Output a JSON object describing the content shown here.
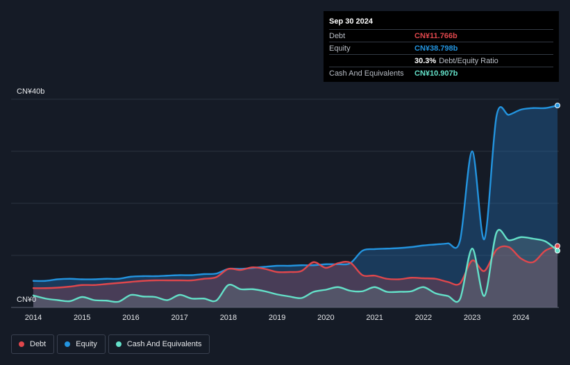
{
  "tooltip": {
    "date": "Sep 30 2024",
    "rows": [
      {
        "label": "Debt",
        "value": "CN¥11.766b",
        "color": "#e0474c"
      },
      {
        "label": "Equity",
        "value": "CN¥38.798b",
        "color": "#2394df"
      },
      {
        "label": "",
        "value": "30.3%",
        "sub": "Debt/Equity Ratio",
        "color": "#ffffff"
      },
      {
        "label": "Cash And Equivalents",
        "value": "CN¥10.907b",
        "color": "#64e1c9"
      }
    ]
  },
  "legend": [
    {
      "label": "Debt",
      "color": "#e0474c"
    },
    {
      "label": "Equity",
      "color": "#2394df"
    },
    {
      "label": "Cash And Equivalents",
      "color": "#64e1c9"
    }
  ],
  "chart_data": {
    "type": "area",
    "title": "",
    "xlabel": "",
    "ylabel": "",
    "ylim": [
      0,
      40
    ],
    "xlim": [
      2014.0,
      2024.75
    ],
    "y_tick_labels": [
      "CN¥0",
      "CN¥40b"
    ],
    "x_ticks": [
      2014,
      2015,
      2016,
      2017,
      2018,
      2019,
      2020,
      2021,
      2022,
      2023,
      2024
    ],
    "grid": true,
    "series": [
      {
        "name": "Equity",
        "color": "#2394df",
        "points": [
          [
            2014.0,
            5.1
          ],
          [
            2014.25,
            5.1
          ],
          [
            2014.5,
            5.4
          ],
          [
            2014.75,
            5.5
          ],
          [
            2015.0,
            5.4
          ],
          [
            2015.25,
            5.4
          ],
          [
            2015.5,
            5.5
          ],
          [
            2015.75,
            5.5
          ],
          [
            2016.0,
            5.9
          ],
          [
            2016.25,
            6.0
          ],
          [
            2016.5,
            6.0
          ],
          [
            2016.75,
            6.1
          ],
          [
            2017.0,
            6.2
          ],
          [
            2017.25,
            6.2
          ],
          [
            2017.5,
            6.4
          ],
          [
            2017.75,
            6.5
          ],
          [
            2018.0,
            7.4
          ],
          [
            2018.25,
            7.4
          ],
          [
            2018.5,
            7.6
          ],
          [
            2018.75,
            7.8
          ],
          [
            2019.0,
            8.0
          ],
          [
            2019.25,
            8.0
          ],
          [
            2019.5,
            8.1
          ],
          [
            2019.75,
            8.1
          ],
          [
            2020.0,
            8.3
          ],
          [
            2020.25,
            8.3
          ],
          [
            2020.5,
            8.5
          ],
          [
            2020.75,
            10.9
          ],
          [
            2021.0,
            11.2
          ],
          [
            2021.25,
            11.3
          ],
          [
            2021.5,
            11.4
          ],
          [
            2021.75,
            11.6
          ],
          [
            2022.0,
            11.9
          ],
          [
            2022.25,
            12.1
          ],
          [
            2022.5,
            12.3
          ],
          [
            2022.75,
            12.8
          ],
          [
            2023.0,
            30.0
          ],
          [
            2023.25,
            13.1
          ],
          [
            2023.5,
            36.8
          ],
          [
            2023.75,
            37.0
          ],
          [
            2024.0,
            38.0
          ],
          [
            2024.25,
            38.3
          ],
          [
            2024.5,
            38.3
          ],
          [
            2024.75,
            38.8
          ]
        ]
      },
      {
        "name": "Debt",
        "color": "#e0474c",
        "points": [
          [
            2014.0,
            3.7
          ],
          [
            2014.25,
            3.7
          ],
          [
            2014.5,
            3.8
          ],
          [
            2014.75,
            4.0
          ],
          [
            2015.0,
            4.3
          ],
          [
            2015.25,
            4.3
          ],
          [
            2015.5,
            4.5
          ],
          [
            2015.75,
            4.7
          ],
          [
            2016.0,
            4.9
          ],
          [
            2016.25,
            5.1
          ],
          [
            2016.5,
            5.2
          ],
          [
            2016.75,
            5.2
          ],
          [
            2017.0,
            5.2
          ],
          [
            2017.25,
            5.2
          ],
          [
            2017.5,
            5.5
          ],
          [
            2017.75,
            5.8
          ],
          [
            2018.0,
            7.4
          ],
          [
            2018.25,
            7.2
          ],
          [
            2018.5,
            7.7
          ],
          [
            2018.75,
            7.4
          ],
          [
            2019.0,
            6.8
          ],
          [
            2019.25,
            6.8
          ],
          [
            2019.5,
            7.0
          ],
          [
            2019.75,
            8.7
          ],
          [
            2020.0,
            7.6
          ],
          [
            2020.25,
            8.5
          ],
          [
            2020.5,
            8.6
          ],
          [
            2020.75,
            6.2
          ],
          [
            2021.0,
            6.1
          ],
          [
            2021.25,
            5.5
          ],
          [
            2021.5,
            5.4
          ],
          [
            2021.75,
            5.7
          ],
          [
            2022.0,
            5.6
          ],
          [
            2022.25,
            5.5
          ],
          [
            2022.5,
            4.9
          ],
          [
            2022.75,
            4.6
          ],
          [
            2023.0,
            9.0
          ],
          [
            2023.25,
            7.0
          ],
          [
            2023.5,
            11.1
          ],
          [
            2023.75,
            11.6
          ],
          [
            2024.0,
            9.4
          ],
          [
            2024.25,
            8.7
          ],
          [
            2024.5,
            10.9
          ],
          [
            2024.75,
            11.8
          ]
        ]
      },
      {
        "name": "Cash And Equivalents",
        "color": "#64e1c9",
        "points": [
          [
            2014.0,
            2.3
          ],
          [
            2014.25,
            1.7
          ],
          [
            2014.5,
            1.4
          ],
          [
            2014.75,
            1.2
          ],
          [
            2015.0,
            2.0
          ],
          [
            2015.25,
            1.4
          ],
          [
            2015.5,
            1.3
          ],
          [
            2015.75,
            1.1
          ],
          [
            2016.0,
            2.4
          ],
          [
            2016.25,
            2.1
          ],
          [
            2016.5,
            2.0
          ],
          [
            2016.75,
            1.4
          ],
          [
            2017.0,
            2.4
          ],
          [
            2017.25,
            1.7
          ],
          [
            2017.5,
            1.7
          ],
          [
            2017.75,
            1.3
          ],
          [
            2018.0,
            4.3
          ],
          [
            2018.25,
            3.5
          ],
          [
            2018.5,
            3.5
          ],
          [
            2018.75,
            3.1
          ],
          [
            2019.0,
            2.5
          ],
          [
            2019.25,
            2.1
          ],
          [
            2019.5,
            1.8
          ],
          [
            2019.75,
            3.0
          ],
          [
            2020.0,
            3.4
          ],
          [
            2020.25,
            3.9
          ],
          [
            2020.5,
            3.2
          ],
          [
            2020.75,
            3.1
          ],
          [
            2021.0,
            3.9
          ],
          [
            2021.25,
            3.0
          ],
          [
            2021.5,
            3.0
          ],
          [
            2021.75,
            3.1
          ],
          [
            2022.0,
            3.9
          ],
          [
            2022.25,
            2.7
          ],
          [
            2022.5,
            2.2
          ],
          [
            2022.75,
            1.6
          ],
          [
            2023.0,
            11.3
          ],
          [
            2023.25,
            2.2
          ],
          [
            2023.5,
            14.4
          ],
          [
            2023.75,
            12.9
          ],
          [
            2024.0,
            13.5
          ],
          [
            2024.25,
            13.2
          ],
          [
            2024.5,
            12.7
          ],
          [
            2024.75,
            10.9
          ]
        ]
      }
    ]
  }
}
